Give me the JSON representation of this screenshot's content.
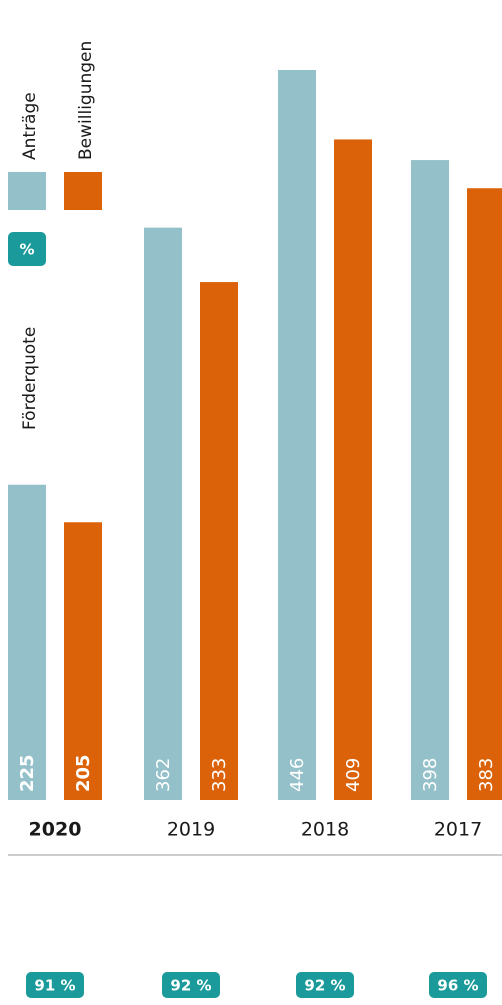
{
  "chart_data": {
    "type": "bar",
    "categories": [
      "2020",
      "2019",
      "2018",
      "2017"
    ],
    "series": [
      {
        "name": "Anträge",
        "color": "#93c0c9",
        "values": [
          225,
          362,
          446,
          398
        ]
      },
      {
        "name": "Bewilligungen",
        "color": "#dc6209",
        "values": [
          205,
          333,
          409,
          383
        ]
      }
    ],
    "ylim": [
      57,
      446
    ],
    "rate_name": "Förderquote",
    "rate_symbol": "%",
    "rate_color": "#1a9a9a",
    "rates": {
      "values": [
        91,
        92,
        92,
        96
      ],
      "value_labels": [
        "91 %",
        "92 %",
        "92 %",
        "96 %"
      ]
    }
  }
}
